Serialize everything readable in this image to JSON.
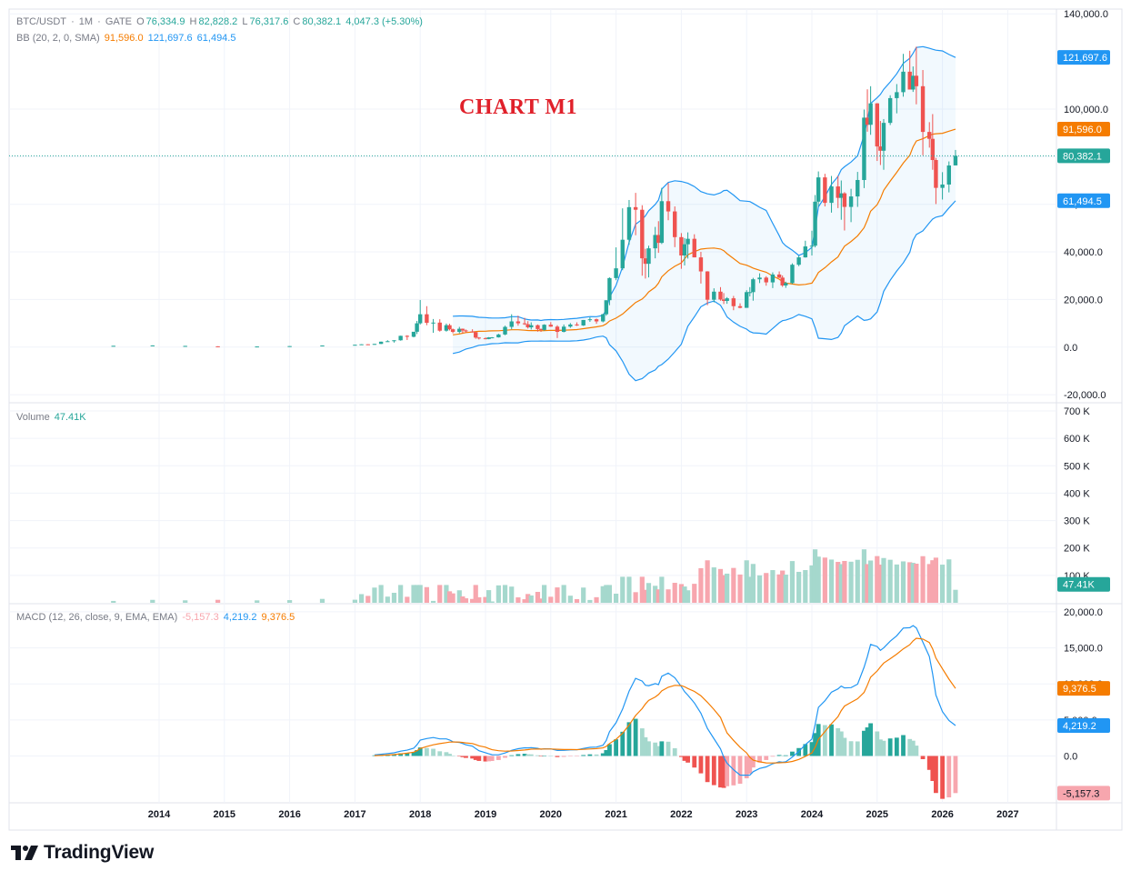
{
  "header": {
    "symbol": "BTC/USDT",
    "sep1": "·",
    "timeframe": "1M",
    "sep2": "·",
    "exchange": "GATE",
    "open_label": "O",
    "open": "76,334.9",
    "high_label": "H",
    "high": "82,828.2",
    "low_label": "L",
    "low": "76,317.6",
    "close_label": "C",
    "close": "80,382.1",
    "change": "4,047.3 (+5.30%)"
  },
  "bb_legend": {
    "label": "BB (20, 2, 0, SMA)",
    "basis": "91,596.0",
    "upper": "121,697.6",
    "lower": "61,494.5"
  },
  "volume_legend": {
    "label": "Volume",
    "value": "47.41K"
  },
  "macd_legend": {
    "label": "MACD (12, 26, close, 9, EMA, EMA)",
    "histogram": "-5,157.3",
    "macd": "4,219.2",
    "signal": "9,376.5"
  },
  "watermark": "CHART M1",
  "brand": "TradingView",
  "colors": {
    "up": "#26a69a",
    "down": "#ef5350",
    "up_light": "#a5d8cd",
    "down_light": "#f7a6ae",
    "bb_basis": "#f57c00",
    "bb_band": "#2196f3",
    "macd_line": "#2196f3",
    "signal_line": "#f57c00",
    "grid": "#f0f3fa"
  },
  "chart_data": [
    {
      "type": "candlestick",
      "title": "BTC/USDT · 1M · GATE",
      "x_axis_labels": [
        "2014",
        "2015",
        "2016",
        "2017",
        "2018",
        "2019",
        "2020",
        "2021",
        "2022",
        "2023",
        "2024",
        "2025",
        "2026",
        "2027"
      ],
      "y_ticks": [
        "140,000.0",
        "100,000.0",
        "80,000.0",
        "60,000.0",
        "40,000.0",
        "20,000.0",
        "0.0",
        "-20,000.0"
      ],
      "ylim": [
        -23000,
        142000
      ],
      "y_axis_tags": [
        {
          "label": "121,697.6",
          "value": 121697.6,
          "color": "#2196f3"
        },
        {
          "label": "91,596.0",
          "value": 91596.0,
          "color": "#f57c00"
        },
        {
          "label": "80,382.1",
          "value": 80382.1,
          "color": "#26a69a"
        },
        {
          "label": "61,494.5",
          "value": 61494.5,
          "color": "#2196f3"
        }
      ],
      "last_price": 80382.1,
      "points": [
        [
          2013.3,
          550,
          560,
          540,
          555
        ],
        [
          2013.9,
          700,
          730,
          680,
          720
        ],
        [
          2014.4,
          500,
          520,
          480,
          510
        ],
        [
          2014.9,
          340,
          360,
          320,
          330
        ],
        [
          2015.5,
          260,
          270,
          250,
          265
        ],
        [
          2016.0,
          420,
          440,
          400,
          430
        ],
        [
          2016.5,
          650,
          700,
          600,
          680
        ],
        [
          2017.0,
          960,
          1000,
          900,
          990
        ],
        [
          2017.1,
          1050,
          1200,
          950,
          1190
        ],
        [
          2017.2,
          1190,
          1250,
          1100,
          1070
        ],
        [
          2017.3,
          1070,
          1350,
          1000,
          1340
        ],
        [
          2017.4,
          1340,
          2300,
          1300,
          2280
        ],
        [
          2017.5,
          2280,
          2900,
          2200,
          2480
        ],
        [
          2017.6,
          2480,
          2900,
          1900,
          2870
        ],
        [
          2017.7,
          2870,
          4800,
          2700,
          4740
        ],
        [
          2017.8,
          4740,
          5000,
          3000,
          4340
        ],
        [
          2017.9,
          4340,
          6400,
          4100,
          6450
        ],
        [
          2017.95,
          6450,
          11000,
          5500,
          10000
        ],
        [
          2018.0,
          10000,
          19800,
          9500,
          13800
        ],
        [
          2018.1,
          13800,
          17200,
          9200,
          10200
        ],
        [
          2018.2,
          10200,
          11800,
          6000,
          10300
        ],
        [
          2018.3,
          10300,
          11700,
          6500,
          6900
        ],
        [
          2018.4,
          6900,
          9900,
          6500,
          9200
        ],
        [
          2018.45,
          9200,
          9800,
          7000,
          7500
        ],
        [
          2018.5,
          7500,
          7800,
          5800,
          6400
        ],
        [
          2018.6,
          6400,
          8500,
          5800,
          7700
        ],
        [
          2018.65,
          7700,
          7800,
          5800,
          7000
        ],
        [
          2018.7,
          7000,
          7400,
          6100,
          6600
        ],
        [
          2018.8,
          6600,
          7500,
          6100,
          6300
        ],
        [
          2018.85,
          6300,
          6500,
          3500,
          4000
        ],
        [
          2018.9,
          4000,
          4200,
          3200,
          3700
        ],
        [
          2019.0,
          3700,
          4100,
          3300,
          3400
        ],
        [
          2019.05,
          3400,
          4200,
          3300,
          4100
        ],
        [
          2019.1,
          4100,
          4200,
          3700,
          4100
        ],
        [
          2019.2,
          4100,
          5600,
          4000,
          5300
        ],
        [
          2019.3,
          5300,
          9000,
          5000,
          8500
        ],
        [
          2019.4,
          8500,
          13800,
          7500,
          10800
        ],
        [
          2019.5,
          10800,
          13200,
          9000,
          10000
        ],
        [
          2019.6,
          10000,
          12300,
          9300,
          9600
        ],
        [
          2019.65,
          9600,
          10900,
          7800,
          8300
        ],
        [
          2019.7,
          8300,
          10400,
          7400,
          9200
        ],
        [
          2019.8,
          9200,
          9500,
          6500,
          7600
        ],
        [
          2019.85,
          7600,
          7800,
          6400,
          7200
        ],
        [
          2019.9,
          7200,
          9600,
          6900,
          9400
        ],
        [
          2020.0,
          9400,
          10500,
          8500,
          8600
        ],
        [
          2020.1,
          8600,
          9200,
          3800,
          6400
        ],
        [
          2020.2,
          6400,
          9500,
          6200,
          8600
        ],
        [
          2020.3,
          8600,
          10100,
          8100,
          9500
        ],
        [
          2020.4,
          9500,
          10400,
          8900,
          9100
        ],
        [
          2020.5,
          9100,
          11400,
          8900,
          11400
        ],
        [
          2020.6,
          11400,
          12500,
          10600,
          11700
        ],
        [
          2020.7,
          11700,
          12000,
          9800,
          10800
        ],
        [
          2020.8,
          10800,
          14000,
          10400,
          13800
        ],
        [
          2020.85,
          13800,
          19500,
          13200,
          19700
        ],
        [
          2020.9,
          19700,
          29300,
          17600,
          29000
        ],
        [
          2021.0,
          29000,
          41900,
          28100,
          33100
        ],
        [
          2021.1,
          33100,
          58300,
          32300,
          45100
        ],
        [
          2021.2,
          45100,
          61800,
          43000,
          58800
        ],
        [
          2021.3,
          58800,
          64800,
          47000,
          57700
        ],
        [
          2021.4,
          57700,
          59600,
          30000,
          37300
        ],
        [
          2021.45,
          37300,
          41300,
          28800,
          35000
        ],
        [
          2021.5,
          35000,
          42600,
          29300,
          41500
        ],
        [
          2021.6,
          41500,
          50500,
          37300,
          47100
        ],
        [
          2021.65,
          47100,
          52900,
          39600,
          43800
        ],
        [
          2021.7,
          43800,
          66900,
          43300,
          61300
        ],
        [
          2021.8,
          61300,
          69000,
          53300,
          57000
        ],
        [
          2021.9,
          57000,
          59100,
          42000,
          46200
        ],
        [
          2022.0,
          46200,
          47900,
          32900,
          38500
        ],
        [
          2022.05,
          38500,
          45800,
          34300,
          43200
        ],
        [
          2022.1,
          43200,
          48200,
          37200,
          45500
        ],
        [
          2022.2,
          45500,
          47400,
          37700,
          37700
        ],
        [
          2022.3,
          37700,
          40000,
          26700,
          31800
        ],
        [
          2022.4,
          31800,
          31900,
          17600,
          19900
        ],
        [
          2022.5,
          19900,
          24700,
          18800,
          23300
        ],
        [
          2022.6,
          23300,
          25200,
          19500,
          20000
        ],
        [
          2022.65,
          20000,
          22700,
          18100,
          19400
        ],
        [
          2022.7,
          19400,
          21000,
          18200,
          20500
        ],
        [
          2022.8,
          20500,
          21500,
          15500,
          17200
        ],
        [
          2022.9,
          17200,
          18400,
          16300,
          16500
        ],
        [
          2023.0,
          16500,
          23900,
          16500,
          23100
        ],
        [
          2023.05,
          23100,
          25200,
          21300,
          23100
        ],
        [
          2023.1,
          23100,
          29100,
          19500,
          28500
        ],
        [
          2023.2,
          28500,
          31000,
          26900,
          29200
        ],
        [
          2023.3,
          29200,
          29800,
          25800,
          27200
        ],
        [
          2023.4,
          27200,
          31400,
          24800,
          30500
        ],
        [
          2023.5,
          30500,
          31800,
          28900,
          29200
        ],
        [
          2023.55,
          29200,
          30100,
          25300,
          25900
        ],
        [
          2023.6,
          25900,
          27500,
          24900,
          26900
        ],
        [
          2023.7,
          26900,
          35200,
          26500,
          34600
        ],
        [
          2023.8,
          34600,
          38400,
          34000,
          37700
        ],
        [
          2023.9,
          37700,
          44700,
          37600,
          42300
        ],
        [
          2024.0,
          42300,
          48900,
          38500,
          42600
        ],
        [
          2024.05,
          42600,
          63900,
          41900,
          61100
        ],
        [
          2024.1,
          61100,
          73800,
          59000,
          71300
        ],
        [
          2024.2,
          71300,
          72800,
          59100,
          60600
        ],
        [
          2024.3,
          60600,
          71900,
          56500,
          67500
        ],
        [
          2024.4,
          67500,
          72000,
          58400,
          62700
        ],
        [
          2024.45,
          62700,
          70000,
          53500,
          64600
        ],
        [
          2024.5,
          64600,
          65100,
          49000,
          58900
        ],
        [
          2024.6,
          58900,
          66500,
          52500,
          63300
        ],
        [
          2024.7,
          63300,
          73600,
          58900,
          70200
        ],
        [
          2024.8,
          70200,
          99800,
          66800,
          96400
        ],
        [
          2024.85,
          96400,
          108300,
          90500,
          93400
        ],
        [
          2024.9,
          93400,
          109600,
          89200,
          102400
        ],
        [
          2025.0,
          102400,
          102500,
          78200,
          84300
        ],
        [
          2025.05,
          84300,
          95000,
          76500,
          82500
        ],
        [
          2025.1,
          82500,
          95800,
          74500,
          94200
        ],
        [
          2025.2,
          94200,
          105800,
          93300,
          104600
        ],
        [
          2025.3,
          104600,
          110500,
          98200,
          107100
        ],
        [
          2025.4,
          107100,
          123200,
          105200,
          115700
        ],
        [
          2025.5,
          115700,
          124500,
          111900,
          108200
        ],
        [
          2025.55,
          108200,
          117900,
          107200,
          114000
        ],
        [
          2025.6,
          114000,
          126200,
          102000,
          109600
        ],
        [
          2025.7,
          109600,
          116400,
          80600,
          90400
        ],
        [
          2025.8,
          90400,
          94500,
          83800,
          87500
        ],
        [
          2025.85,
          87500,
          97900,
          74500,
          78600
        ],
        [
          2025.9,
          78600,
          79500,
          60100,
          66900
        ],
        [
          2026.0,
          66900,
          73500,
          62000,
          68300
        ],
        [
          2026.1,
          68300,
          78000,
          65000,
          76300
        ],
        [
          2026.2,
          76334.9,
          82828.2,
          76317.6,
          80382.1
        ]
      ]
    },
    {
      "type": "bar",
      "title": "Volume",
      "y_ticks": [
        "700 K",
        "600 K",
        "500 K",
        "400 K",
        "300 K",
        "200 K",
        "100 K"
      ],
      "ylim": [
        0,
        700
      ],
      "unit": "K",
      "last_value_label": "47.41K",
      "last_value": 47.41
    },
    {
      "type": "line",
      "title": "MACD (12, 26, close, 9, EMA, EMA)",
      "y_ticks": [
        "20,000.0",
        "15,000.0",
        "10,000.0",
        "5,000.0",
        "0.0"
      ],
      "ylim": [
        -6500,
        21000
      ],
      "series": [
        {
          "name": "MACD",
          "last": 4219.2
        },
        {
          "name": "Signal",
          "last": 9376.5
        },
        {
          "name": "Histogram",
          "last": -5157.3
        }
      ],
      "y_axis_tags": [
        {
          "label": "9,376.5",
          "value": 9376.5,
          "color": "#f57c00"
        },
        {
          "label": "4,219.2",
          "value": 4219.2,
          "color": "#2196f3"
        },
        {
          "label": "-5,157.3",
          "value": -5157.3,
          "color": "#f7a6ae"
        }
      ]
    }
  ]
}
